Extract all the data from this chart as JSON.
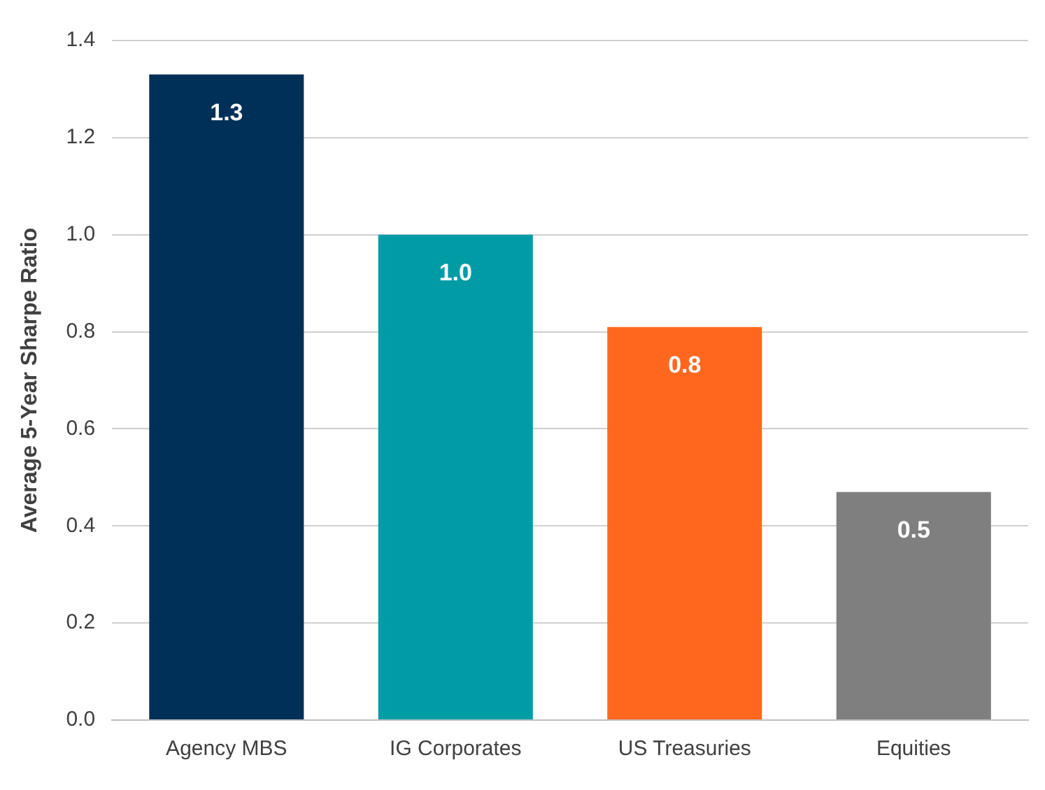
{
  "chart_data": {
    "type": "bar",
    "ylabel": "Average 5-Year Sharpe Ratio",
    "categories": [
      "Agency MBS",
      "IG Corporates",
      "US Treasuries",
      "Equities"
    ],
    "values": [
      1.33,
      1.0,
      0.81,
      0.47
    ],
    "colors": [
      "#003057",
      "#009ca6",
      "#ff671f",
      "#7f7f7f"
    ],
    "value_labels": [
      "1.3",
      "1.0",
      "0.8",
      "0.5"
    ],
    "ylim": [
      0,
      1.4
    ],
    "yticks": [
      {
        "value": 0,
        "label": "0.0"
      },
      0.2,
      0.4,
      0.6,
      0.8,
      {
        "value": 1,
        "label": "1.0"
      },
      1.2,
      1.4
    ],
    "grid": "y",
    "legend": false
  }
}
